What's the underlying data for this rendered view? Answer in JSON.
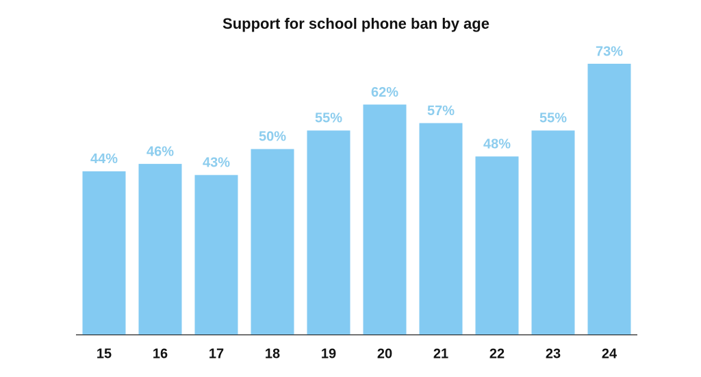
{
  "chart_data": {
    "type": "bar",
    "title": "Support for school phone ban by age",
    "categories": [
      "15",
      "16",
      "17",
      "18",
      "19",
      "20",
      "21",
      "22",
      "23",
      "24"
    ],
    "values": [
      44,
      46,
      43,
      50,
      55,
      62,
      57,
      48,
      55,
      73
    ],
    "value_labels": [
      "44%",
      "46%",
      "43%",
      "50%",
      "55%",
      "62%",
      "57%",
      "48%",
      "55%",
      "73%"
    ],
    "color": "#83caf2",
    "label_color": "#8dcdee"
  }
}
